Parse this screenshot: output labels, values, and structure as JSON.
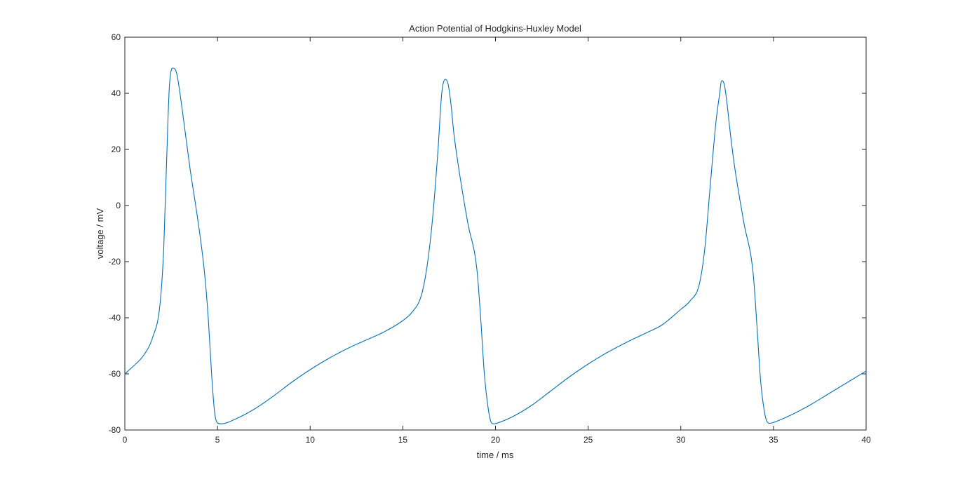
{
  "chart_data": {
    "type": "line",
    "title": "Action Potential of Hodgkins-Huxley Model",
    "xlabel": "time / ms",
    "ylabel": "voltage / mV",
    "xlim": [
      0,
      40
    ],
    "ylim": [
      -80,
      60
    ],
    "xticks": [
      "0",
      "5",
      "10",
      "15",
      "20",
      "25",
      "30",
      "35",
      "40"
    ],
    "yticks": [
      "-80",
      "-60",
      "-40",
      "-20",
      "0",
      "20",
      "40",
      "60"
    ],
    "grid": false,
    "line_color": "#0072BD",
    "series": [
      {
        "x": [
          0,
          0.5,
          1,
          1.5,
          1.9,
          2.1,
          2.25,
          2.4,
          2.6,
          2.8,
          3.1,
          3.5,
          4,
          4.3,
          4.5,
          4.7,
          4.85,
          5,
          5.2,
          6,
          7,
          8,
          9,
          10,
          11,
          12,
          13,
          14,
          15,
          15.5,
          16,
          16.3,
          16.6,
          16.9,
          17.1,
          17.3,
          17.45,
          17.6,
          17.75,
          18,
          18.5,
          19,
          19.2,
          19.4,
          19.6,
          19.75,
          19.9,
          20.2,
          21,
          22,
          23,
          24,
          25,
          26,
          27,
          28,
          29,
          30,
          30.5,
          31,
          31.3,
          31.6,
          31.9,
          32.1,
          32.2,
          32.35,
          32.5,
          32.65,
          32.9,
          33.4,
          33.9,
          34.1,
          34.3,
          34.5,
          34.65,
          34.8,
          35,
          36,
          37,
          38,
          39,
          40
        ],
        "y": [
          -60,
          -57,
          -53.5,
          -47,
          -35,
          -15,
          15,
          42,
          49,
          47,
          34,
          14,
          -8,
          -24,
          -40,
          -62,
          -74,
          -77.5,
          -77.8,
          -76,
          -72.5,
          -68,
          -63,
          -58.5,
          -54.5,
          -51,
          -48,
          -45,
          -41,
          -38,
          -32,
          -22,
          -5,
          20,
          40,
          45,
          43,
          36,
          26,
          14,
          -6,
          -23,
          -40,
          -60,
          -72,
          -77,
          -77.8,
          -77.3,
          -75,
          -71,
          -66,
          -61,
          -56.5,
          -52.5,
          -49,
          -45.8,
          -42.5,
          -37,
          -34,
          -28,
          -15,
          8,
          30,
          40,
          44.5,
          43,
          36,
          27,
          14,
          -6,
          -24,
          -42,
          -62,
          -73,
          -77,
          -77.6,
          -77.3,
          -74.5,
          -71,
          -67,
          -63,
          -59
        ]
      }
    ]
  }
}
